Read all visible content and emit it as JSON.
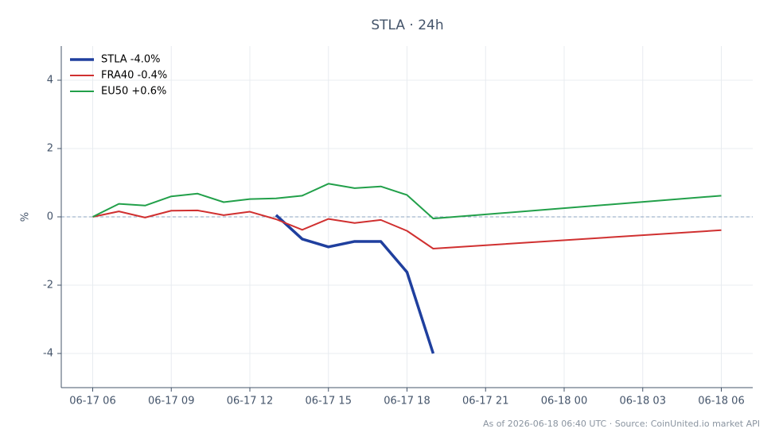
{
  "chart_data": {
    "type": "line",
    "title": "STLA · 24h",
    "y_label": "%",
    "footnote": "As of 2026-06-18 06:40 UTC · Source: CoinUnited.io market API",
    "x": [
      "06-17 06",
      "06-17 07",
      "06-17 08",
      "06-17 09",
      "06-17 10",
      "06-17 11",
      "06-17 12",
      "06-17 13",
      "06-17 14",
      "06-17 15",
      "06-17 16",
      "06-17 17",
      "06-17 18",
      "06-17 19",
      "06-18 06"
    ],
    "series": [
      {
        "name": "STLA -4.0%",
        "color": "#1f3f9e",
        "width": 3.5,
        "values": [
          null,
          null,
          null,
          null,
          null,
          null,
          null,
          0.05,
          -0.65,
          -0.88,
          -0.72,
          -0.72,
          -1.62,
          -4.0,
          null
        ]
      },
      {
        "name": "FRA40 -0.4%",
        "color": "#d03030",
        "width": 2,
        "values": [
          0,
          0.16,
          -0.02,
          0.18,
          0.19,
          0.05,
          0.15,
          -0.07,
          -0.38,
          -0.06,
          -0.18,
          -0.09,
          -0.41,
          -0.93,
          -0.39
        ]
      },
      {
        "name": "EU50 +0.6%",
        "color": "#22a04a",
        "width": 2,
        "values": [
          0,
          0.38,
          0.33,
          0.6,
          0.68,
          0.43,
          0.52,
          0.54,
          0.62,
          0.97,
          0.84,
          0.89,
          0.64,
          -0.05,
          0.62
        ]
      }
    ],
    "xlim": [
      "06-17 04:48",
      "06-18 07:12"
    ],
    "xticks": [
      "06-17 06",
      "06-17 09",
      "06-17 12",
      "06-17 15",
      "06-17 18",
      "06-17 21",
      "06-18 00",
      "06-18 03",
      "06-18 06"
    ],
    "ylim": [
      -5,
      5
    ],
    "yticks": [
      -4,
      -2,
      0,
      2,
      4
    ],
    "reference_line": 0,
    "grid": true,
    "legend": "upper left"
  }
}
